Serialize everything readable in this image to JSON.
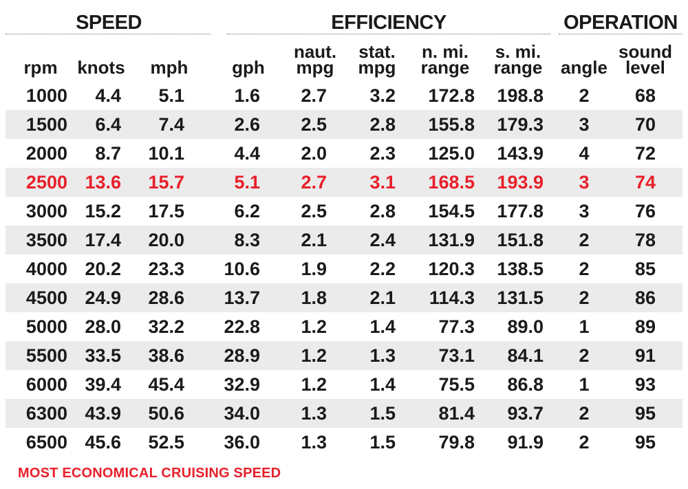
{
  "groups": {
    "speed": "SPEED",
    "efficiency": "EFFICIENCY",
    "operation": "OPERATION"
  },
  "columns": {
    "rpm": [
      "rpm"
    ],
    "knots": [
      "knots"
    ],
    "mph": [
      "mph"
    ],
    "gph": [
      "gph"
    ],
    "naut_mpg": [
      "naut.",
      "mpg"
    ],
    "stat_mpg": [
      "stat.",
      "mpg"
    ],
    "n_range": [
      "n. mi.",
      "range"
    ],
    "s_range": [
      "s. mi.",
      "range"
    ],
    "angle": [
      "angle"
    ],
    "sound": [
      "sound",
      "level"
    ]
  },
  "rows": [
    [
      "1000",
      "4.4",
      "5.1",
      "1.6",
      "2.7",
      "3.2",
      "172.8",
      "198.8",
      "2",
      "68"
    ],
    [
      "1500",
      "6.4",
      "7.4",
      "2.6",
      "2.5",
      "2.8",
      "155.8",
      "179.3",
      "3",
      "70"
    ],
    [
      "2000",
      "8.7",
      "10.1",
      "4.4",
      "2.0",
      "2.3",
      "125.0",
      "143.9",
      "4",
      "72"
    ],
    [
      "2500",
      "13.6",
      "15.7",
      "5.1",
      "2.7",
      "3.1",
      "168.5",
      "193.9",
      "3",
      "74"
    ],
    [
      "3000",
      "15.2",
      "17.5",
      "6.2",
      "2.5",
      "2.8",
      "154.5",
      "177.8",
      "3",
      "76"
    ],
    [
      "3500",
      "17.4",
      "20.0",
      "8.3",
      "2.1",
      "2.4",
      "131.9",
      "151.8",
      "2",
      "78"
    ],
    [
      "4000",
      "20.2",
      "23.3",
      "10.6",
      "1.9",
      "2.2",
      "120.3",
      "138.5",
      "2",
      "85"
    ],
    [
      "4500",
      "24.9",
      "28.6",
      "13.7",
      "1.8",
      "2.1",
      "114.3",
      "131.5",
      "2",
      "86"
    ],
    [
      "5000",
      "28.0",
      "32.2",
      "22.8",
      "1.2",
      "1.4",
      "77.3",
      "89.0",
      "1",
      "89"
    ],
    [
      "5500",
      "33.5",
      "38.6",
      "28.9",
      "1.2",
      "1.3",
      "73.1",
      "84.1",
      "2",
      "91"
    ],
    [
      "6000",
      "39.4",
      "45.4",
      "32.9",
      "1.2",
      "1.4",
      "75.5",
      "86.8",
      "1",
      "93"
    ],
    [
      "6300",
      "43.9",
      "50.6",
      "34.0",
      "1.3",
      "1.5",
      "81.4",
      "93.7",
      "2",
      "95"
    ],
    [
      "6500",
      "45.6",
      "52.5",
      "36.0",
      "1.3",
      "1.5",
      "79.8",
      "91.9",
      "2",
      "95"
    ]
  ],
  "highlight_row": 3,
  "highlight_color": "#e8202a",
  "shade_color": "#ebebeb",
  "footnote": "MOST ECONOMICAL CRUISING SPEED",
  "chart_data": {
    "type": "table",
    "columns": [
      "rpm",
      "knots",
      "mph",
      "gph",
      "naut. mpg",
      "stat. mpg",
      "n. mi. range",
      "s. mi. range",
      "angle",
      "sound level"
    ],
    "column_groups": [
      {
        "name": "SPEED",
        "columns": [
          "rpm",
          "knots",
          "mph"
        ]
      },
      {
        "name": "EFFICIENCY",
        "columns": [
          "gph",
          "naut. mpg",
          "stat. mpg",
          "n. mi. range",
          "s. mi. range"
        ]
      },
      {
        "name": "OPERATION",
        "columns": [
          "angle",
          "sound level"
        ]
      }
    ],
    "highlighted_row_rpm": 2500
  }
}
